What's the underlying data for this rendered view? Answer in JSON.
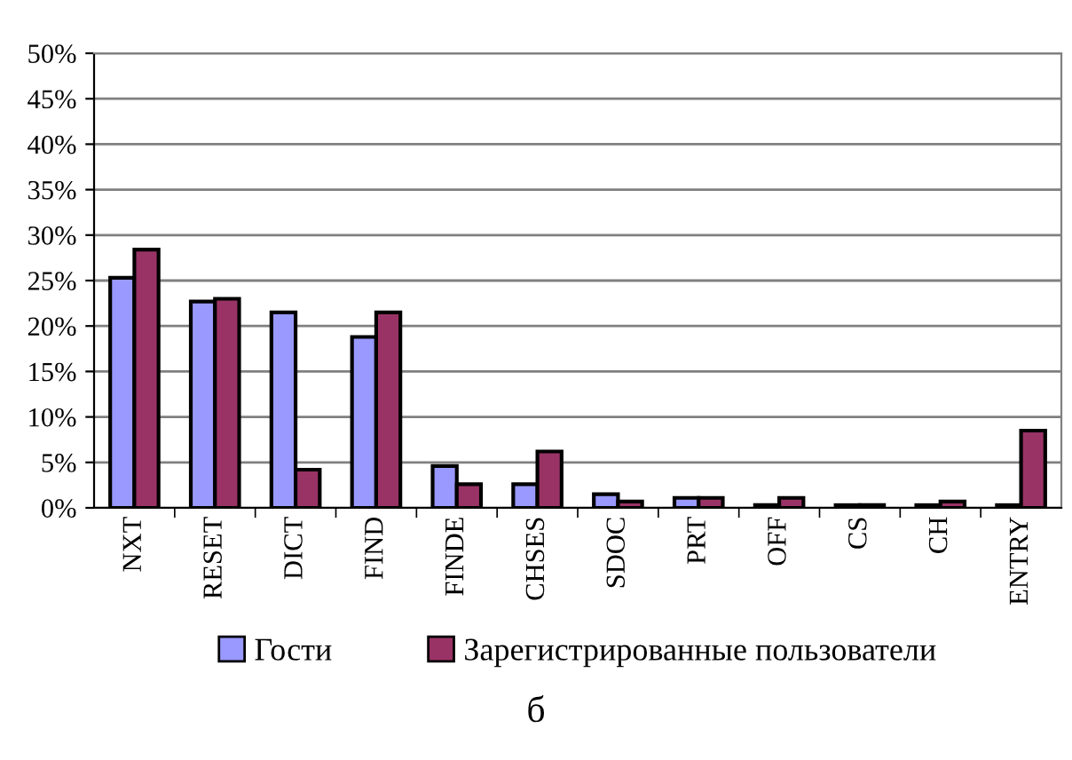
{
  "chart_data": {
    "type": "bar",
    "categories": [
      "NXT",
      "RESET",
      "DICT",
      "FIND",
      "FINDE",
      "CHSES",
      "SDOC",
      "PRT",
      "OFF",
      "CS",
      "CH",
      "ENTRY"
    ],
    "series": [
      {
        "name": "Гости",
        "color": "#9999ff",
        "values": [
          25.3,
          22.7,
          21.5,
          18.8,
          4.6,
          2.6,
          1.5,
          1.1,
          0.3,
          0.3,
          0.3,
          0.3
        ]
      },
      {
        "name": "Зарегистрированные пользователи",
        "color": "#993366",
        "values": [
          28.4,
          23.0,
          4.2,
          21.5,
          2.6,
          6.2,
          0.7,
          1.1,
          1.1,
          0.3,
          0.7,
          8.5
        ]
      }
    ],
    "ylim": [
      0,
      50
    ],
    "yticks": [
      {
        "value": 0,
        "label": "0%"
      },
      {
        "value": 5,
        "label": "5%"
      },
      {
        "value": 10,
        "label": "10%"
      },
      {
        "value": 15,
        "label": "15%"
      },
      {
        "value": 20,
        "label": "20%"
      },
      {
        "value": 25,
        "label": "25%"
      },
      {
        "value": 30,
        "label": "30%"
      },
      {
        "value": 35,
        "label": "35%"
      },
      {
        "value": 40,
        "label": "40%"
      },
      {
        "value": 45,
        "label": "45%"
      },
      {
        "value": 50,
        "label": "50%"
      }
    ],
    "grid": "y",
    "legend": "bottom",
    "annotations": [
      "б"
    ]
  }
}
